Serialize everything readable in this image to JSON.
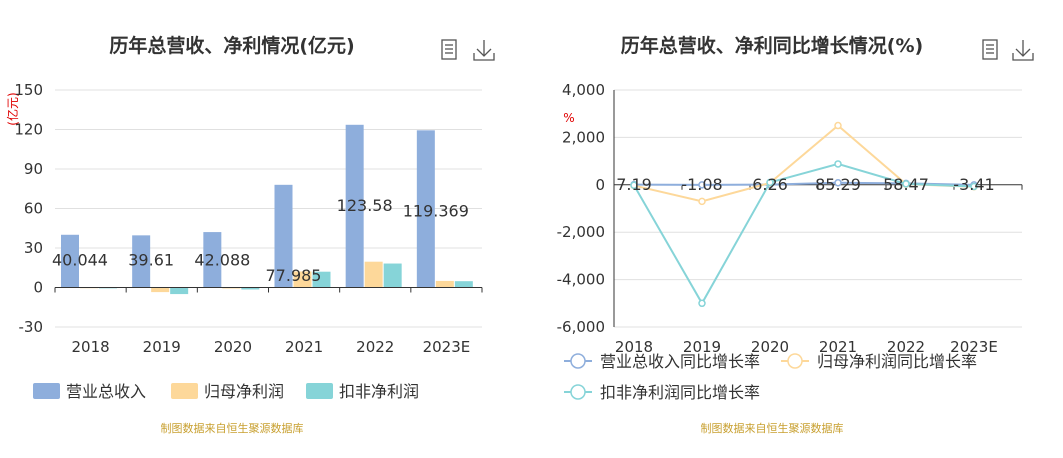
{
  "chart_data": [
    {
      "type": "bar",
      "title": "历年总营收、净利情况(亿元)",
      "unit_label": "(亿元)",
      "categories": [
        "2018",
        "2019",
        "2020",
        "2021",
        "2022",
        "2023E"
      ],
      "ylim": [
        -30,
        150
      ],
      "yticks": [
        -30,
        0,
        30,
        60,
        90,
        120,
        150
      ],
      "grid": true,
      "legend_position": "bottom-left",
      "series": [
        {
          "name": "营业总收入",
          "color": "#8eaedc",
          "values": [
            40.044,
            39.61,
            42.088,
            77.985,
            123.58,
            119.369
          ]
        },
        {
          "name": "归母净利润",
          "color": "#fdd89a",
          "values": [
            0.2,
            -3.5,
            -0.6,
            12.2,
            19.6,
            5.0
          ]
        },
        {
          "name": "扣非净利润",
          "color": "#86d4d8",
          "values": [
            0.1,
            -5.0,
            -1.5,
            12.0,
            18.2,
            4.8
          ]
        }
      ],
      "data_labels": [
        "40.044",
        "39.61",
        "42.088",
        "77.985",
        "123.58",
        "119.369"
      ],
      "source": "制图数据来自恒生聚源数据库"
    },
    {
      "type": "line",
      "title": "历年总营收、净利同比增长情况(%)",
      "unit_label": "%",
      "categories": [
        "2018",
        "2019",
        "2020",
        "2021",
        "2022",
        "2023E"
      ],
      "ylim": [
        -6000,
        4000
      ],
      "yticks": [
        -6000,
        -4000,
        -2000,
        0,
        2000,
        4000
      ],
      "ytick_labels": [
        "-6,000",
        "-4,000",
        "-2,000",
        "0",
        "2,000",
        "4,000"
      ],
      "grid": true,
      "legend_position": "bottom-left",
      "series": [
        {
          "name": "营业总收入同比增长率",
          "color": "#8eaedc",
          "values": [
            7.19,
            -1.08,
            6.26,
            85.29,
            58.47,
            -3.41
          ]
        },
        {
          "name": "归母净利润同比增长率",
          "color": "#fdd89a",
          "values": [
            -30,
            -700,
            80,
            2500,
            30,
            -80
          ]
        },
        {
          "name": "扣非净利润同比增长率",
          "color": "#86d4d8",
          "values": [
            -20,
            -5000,
            100,
            880,
            40,
            -70
          ]
        }
      ],
      "data_labels": [
        "7.19",
        "-1.08",
        "6.26",
        "85.29",
        "58.47",
        "-3.41"
      ],
      "source": "制图数据来自恒生聚源数据库"
    }
  ],
  "toolbar": {
    "icons": [
      "data-view-icon",
      "download-icon"
    ]
  }
}
